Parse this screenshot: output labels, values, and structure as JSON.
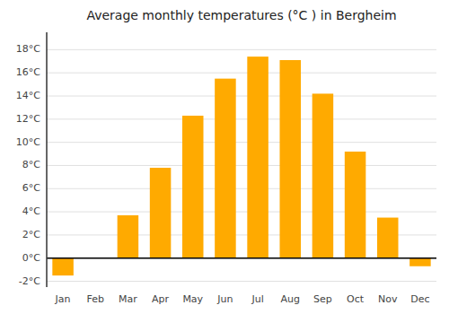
{
  "chart_data": {
    "type": "bar",
    "title": "Average monthly temperatures (°C ) in Bergheim",
    "categories": [
      "Jan",
      "Feb",
      "Mar",
      "Apr",
      "May",
      "Jun",
      "Jul",
      "Aug",
      "Sep",
      "Oct",
      "Nov",
      "Dec"
    ],
    "values": [
      -1.5,
      0.0,
      3.7,
      7.8,
      12.3,
      15.5,
      17.4,
      17.1,
      14.2,
      9.2,
      3.5,
      -0.7
    ],
    "color": "#FFAA00",
    "ylim": [
      -2.5,
      19.5
    ],
    "yticks": [
      {
        "value": -2,
        "label": "-2°C"
      },
      {
        "value": 0,
        "label": "0°C"
      },
      {
        "value": 2,
        "label": "2°C"
      },
      {
        "value": 4,
        "label": "4°C"
      },
      {
        "value": 6,
        "label": "6°C"
      },
      {
        "value": 8,
        "label": "8°C"
      },
      {
        "value": 10,
        "label": "10°C"
      },
      {
        "value": 12,
        "label": "12°C"
      },
      {
        "value": 14,
        "label": "14°C"
      },
      {
        "value": 16,
        "label": "16°C"
      },
      {
        "value": 18,
        "label": "18°C"
      }
    ],
    "grid": true
  }
}
